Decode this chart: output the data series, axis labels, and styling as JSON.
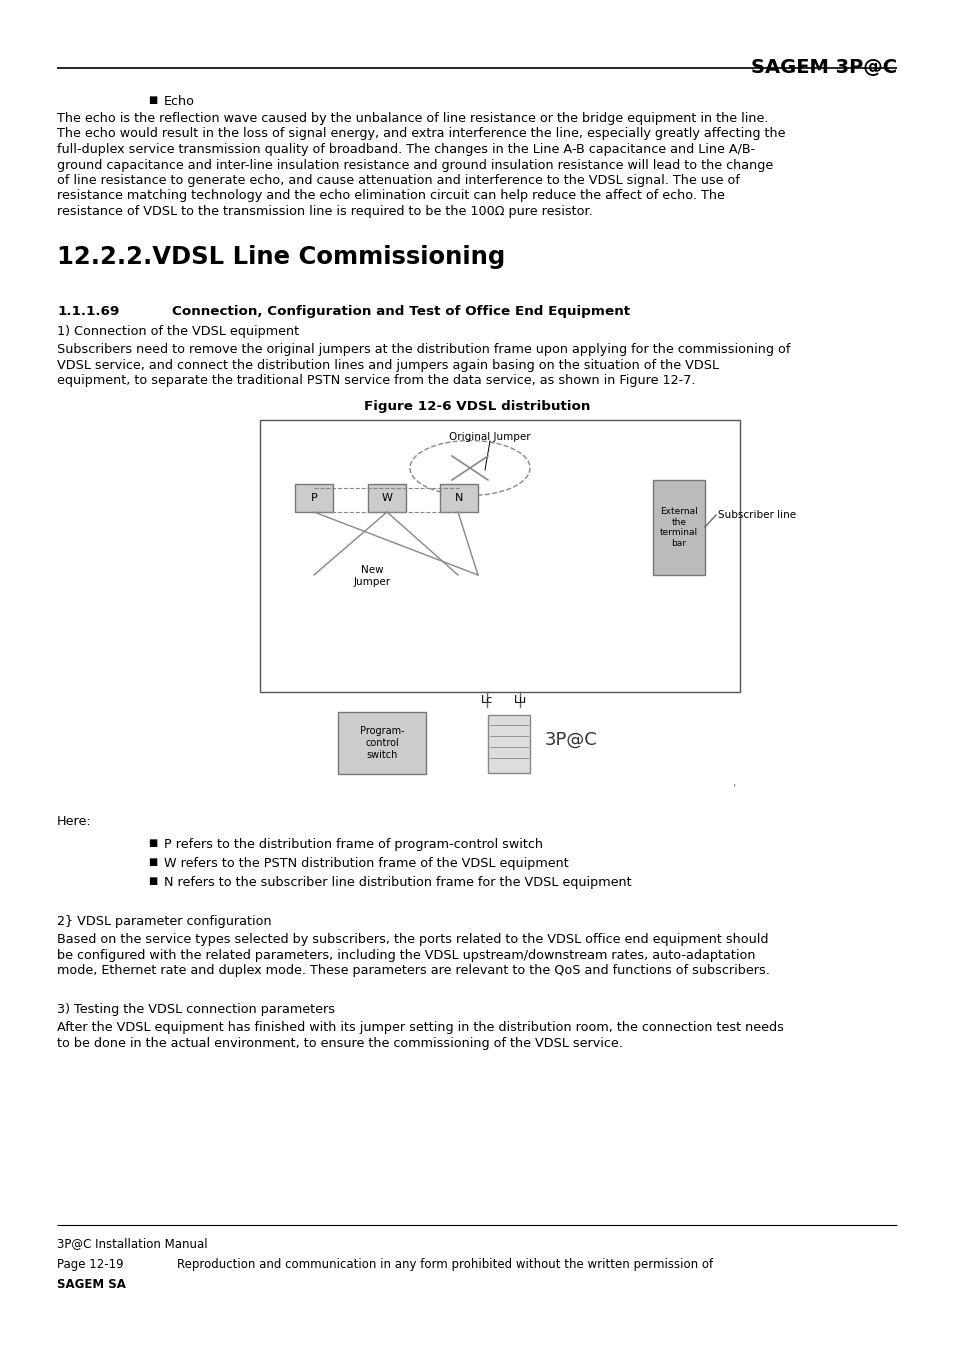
{
  "bg_color": "#ffffff",
  "header_title": "SAGEM 3P@C",
  "footer_text1": "3P@C Installation Manual",
  "footer_text2_left": "Page 12-19",
  "footer_text2_right": "Reproduction and communication in any form prohibited without the written permission of",
  "footer_text3": "SAGEM SA",
  "bullet_echo_title": "Echo",
  "section_title": "12.2.2.VDSL Line Commissioning",
  "subsection_num": "1.1.1.69",
  "subsection_title": "Connection, Configuration and Test of Office End Equipment",
  "item1_title": "1) Connection of the VDSL equipment",
  "fig_caption": "Figure 12-6 VDSL distribution",
  "here_label": "Here:",
  "bullet1": "P refers to the distribution frame of program-control switch",
  "bullet2": "W refers to the PSTN distribution frame of the VDSL equipment",
  "bullet3": "N refers to the subscriber line distribution frame for the VDSL equipment",
  "item2_title": "2} VDSL parameter configuration",
  "item3_title": "3) Testing the VDSL connection parameters"
}
